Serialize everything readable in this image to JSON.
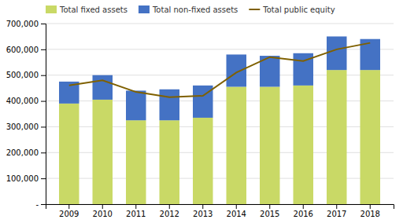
{
  "chart_data": {
    "type": "bar",
    "stacked": true,
    "grid": true,
    "legend": "upper-left",
    "categories": [
      "2009",
      "2010",
      "2011",
      "2012",
      "2013",
      "2014",
      "2015",
      "2016",
      "2017",
      "2018"
    ],
    "series": [
      {
        "name": "Total fixed assets",
        "type": "bar",
        "color": "#c9d966",
        "values": [
          390000,
          405000,
          325000,
          325000,
          335000,
          455000,
          455000,
          460000,
          520000,
          520000
        ]
      },
      {
        "name": "Total non-fixed assets",
        "type": "bar",
        "color": "#4472c4",
        "values": [
          85000,
          95000,
          115000,
          120000,
          125000,
          125000,
          120000,
          125000,
          130000,
          120000
        ]
      },
      {
        "name": "Total public equity",
        "type": "line",
        "color": "#7f6000",
        "values": [
          460000,
          480000,
          435000,
          415000,
          420000,
          510000,
          570000,
          555000,
          600000,
          625000
        ]
      }
    ],
    "ylim": [
      0,
      700000
    ],
    "yticks": [
      {
        "value": 0,
        "label": "-"
      },
      {
        "value": 100000,
        "label": "100,000"
      },
      {
        "value": 200000,
        "label": "200,000"
      },
      {
        "value": 300000,
        "label": "300,000"
      },
      {
        "value": 400000,
        "label": "400,000"
      },
      {
        "value": 500000,
        "label": "500,000"
      },
      {
        "value": 600000,
        "label": "600,000"
      },
      {
        "value": 700000,
        "label": "700,000"
      }
    ]
  }
}
